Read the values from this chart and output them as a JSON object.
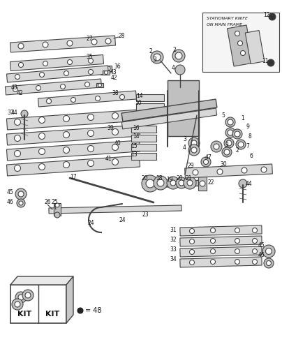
{
  "bg_color": "#ffffff",
  "line_color": "#444444",
  "text_color": "#111111",
  "fill_light": "#d8d8d8",
  "fill_mid": "#c0c0c0",
  "fill_dark": "#aaaaaa",
  "stationary_knife_text": [
    "STATIONARY KNIFE",
    "ON MAIN FRAME"
  ],
  "kit_text": [
    "KIT",
    "KIT"
  ],
  "kit_legend": "● = 48"
}
